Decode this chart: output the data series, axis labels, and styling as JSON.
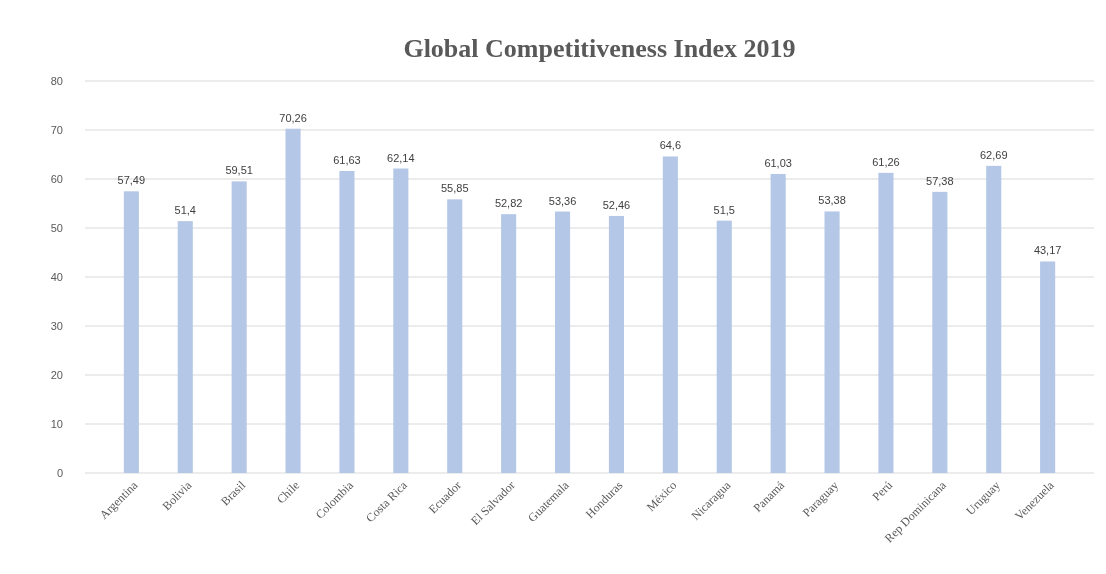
{
  "chart_data": {
    "type": "bar",
    "title": "Global Competitiveness Index 2019",
    "categories": [
      "Argentina",
      "Bolivia",
      "Brasil",
      "Chile",
      "Colombia",
      "Costa Rica",
      "Ecuador",
      "El Salvador",
      "Guatemala",
      "Honduras",
      "México",
      "Nicaragua",
      "Panamá",
      "Paraguay",
      "Perú",
      "Rep Dominicana",
      "Uruguay",
      "Venezuela"
    ],
    "values": [
      57.49,
      51.4,
      59.51,
      70.26,
      61.63,
      62.14,
      55.85,
      52.82,
      53.36,
      52.46,
      64.6,
      51.5,
      61.03,
      53.38,
      61.26,
      57.38,
      62.69,
      43.17
    ],
    "value_labels": [
      "57,49",
      "51,4",
      "59,51",
      "70,26",
      "61,63",
      "62,14",
      "55,85",
      "52,82",
      "53,36",
      "52,46",
      "64,6",
      "51,5",
      "61,03",
      "53,38",
      "61,26",
      "57,38",
      "62,69",
      "43,17"
    ],
    "color": "#b4c7e7",
    "ylim": [
      0,
      80
    ],
    "yticks": [
      0,
      10,
      20,
      30,
      40,
      50,
      60,
      70,
      80
    ],
    "grid": "y"
  }
}
